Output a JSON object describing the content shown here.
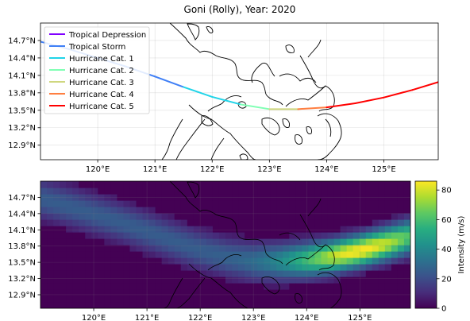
{
  "figure": {
    "title": "Goni (Rolly), Year: 2020"
  },
  "chart_data": [
    {
      "type": "line",
      "x": [
        118.0,
        118.5,
        119.0,
        119.5,
        120.0,
        120.5,
        121.0,
        121.5,
        122.0,
        122.5,
        123.0,
        123.5,
        124.0,
        124.5,
        125.0,
        125.5,
        126.0
      ],
      "y": [
        14.85,
        14.78,
        14.68,
        14.55,
        14.4,
        14.25,
        14.08,
        13.9,
        13.73,
        13.6,
        13.52,
        13.52,
        13.55,
        13.62,
        13.72,
        13.85,
        14.0
      ],
      "category": [
        "Tropical Depression",
        "Tropical Storm",
        "Tropical Storm",
        "Tropical Storm",
        "Tropical Storm",
        "Tropical Storm",
        "Tropical Storm",
        "Tropical Storm",
        "Hurricane Cat. 1",
        "Hurricane Cat. 1",
        "Hurricane Cat. 2",
        "Hurricane Cat. 3",
        "Hurricane Cat. 4",
        "Hurricane Cat. 5",
        "Hurricane Cat. 5",
        "Hurricane Cat. 5",
        "Hurricane Cat. 5"
      ],
      "xlim": [
        119.0,
        125.95
      ],
      "ylim": [
        12.65,
        15.0
      ],
      "xticks": [
        120,
        121,
        122,
        123,
        124,
        125
      ],
      "xtick_labels": [
        "120°E",
        "121°E",
        "122°E",
        "123°E",
        "124°E",
        "125°E"
      ],
      "yticks": [
        12.9,
        13.2,
        13.5,
        13.8,
        14.1,
        14.4,
        14.7
      ],
      "ytick_labels": [
        "12.9°N",
        "13.2°N",
        "13.5°N",
        "13.8°N",
        "14.1°N",
        "14.4°N",
        "14.7°N"
      ],
      "grid": true,
      "legend": {
        "placement": "upper-left",
        "entries": [
          {
            "label": "Tropical Depression",
            "color": "#8000ff"
          },
          {
            "label": "Tropical Storm",
            "color": "#3f7ff6"
          },
          {
            "label": "Hurricane Cat. 1",
            "color": "#21d4e8"
          },
          {
            "label": "Hurricane Cat. 2",
            "color": "#80ffb4"
          },
          {
            "label": "Hurricane Cat. 3",
            "color": "#cfd77f"
          },
          {
            "label": "Hurricane Cat. 4",
            "color": "#ff7f41"
          },
          {
            "label": "Hurricane Cat. 5",
            "color": "#ff0000"
          }
        ]
      }
    },
    {
      "type": "heatmap",
      "xlim": [
        119.0,
        125.95
      ],
      "ylim": [
        12.65,
        15.0
      ],
      "xticks": [
        120,
        121,
        122,
        123,
        124,
        125
      ],
      "xtick_labels": [
        "120°E",
        "121°E",
        "122°E",
        "123°E",
        "124°E",
        "125°E"
      ],
      "yticks": [
        12.9,
        13.2,
        13.5,
        13.8,
        14.1,
        14.4,
        14.7
      ],
      "ytick_labels": [
        "12.9°N",
        "13.2°N",
        "13.5°N",
        "13.8°N",
        "14.1°N",
        "14.4°N",
        "14.7°N"
      ],
      "colormap": "viridis",
      "colorbar": {
        "label": "Intensity (m/s)",
        "ticks": [
          0,
          20,
          40,
          60,
          80
        ],
        "range": [
          0,
          86
        ]
      },
      "peak": {
        "lon": 125.0,
        "lat": 13.72,
        "value": 86
      },
      "grid": true
    }
  ]
}
